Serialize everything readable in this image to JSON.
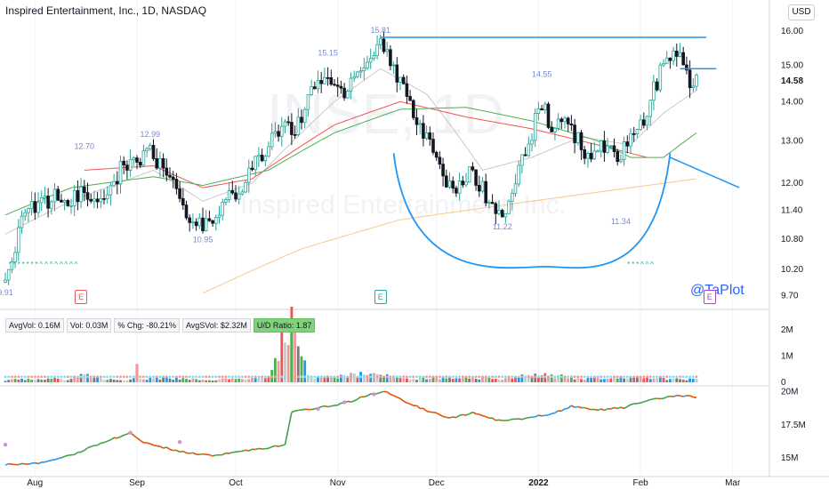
{
  "header": {
    "title": "Inspired Entertainment, Inc., 1D, NASDAQ",
    "currency_button": "USD",
    "watermark": "INSE, 1D",
    "watermark_sub": "Inspired Entertainment, Inc."
  },
  "stats": {
    "avgvol": "AvgVol: 0.16M",
    "vol": "Vol: 0.03M",
    "chg": "% Chg: -80.21%",
    "avgsvol": "AvgSVol: $2.32M",
    "ud": "U/D Ratio: 1.87"
  },
  "brand": "@TaPlot",
  "earnings_badge": "E",
  "colors": {
    "up": "#26a69a",
    "down": "#131722",
    "ma_short": "#c9c9c9",
    "ma_mid": "#ef5350",
    "ma_long": "#4caf50",
    "ma_200": "#f7c98a",
    "drawing": "#2196f3",
    "line_orange": "#e65100"
  },
  "chart_data": [
    {
      "type": "line",
      "title": "Inspired Entertainment, Inc., 1D, NASDAQ",
      "ylabel": "USD",
      "y_scale": "log",
      "ylim": [
        9.55,
        16.35
      ],
      "y_ticks": [
        "16.00",
        "15.00",
        "14.00",
        "13.00",
        "12.00",
        "11.40",
        "10.80",
        "10.20",
        "9.70"
      ],
      "last_price": "14.58",
      "x_ticks": [
        "Aug",
        "Sep",
        "Oct",
        "Nov",
        "Dec",
        "2022",
        "Feb",
        "Mar"
      ],
      "x_tick_days": [
        9,
        40,
        70,
        101,
        131,
        162,
        193,
        221
      ],
      "x_range_days": [
        0,
        238
      ],
      "annotations": [
        {
          "label": "9.91",
          "day": 0,
          "value": 9.91,
          "anchor": "below"
        },
        {
          "label": "12.70",
          "day": 24,
          "value": 12.7,
          "anchor": "above"
        },
        {
          "label": "12.99",
          "day": 44,
          "value": 12.99,
          "anchor": "above"
        },
        {
          "label": "10.95",
          "day": 60,
          "value": 10.95,
          "anchor": "below"
        },
        {
          "label": "15.15",
          "day": 98,
          "value": 15.15,
          "anchor": "above"
        },
        {
          "label": "15.81",
          "day": 114,
          "value": 15.81,
          "anchor": "above"
        },
        {
          "label": "11.22",
          "day": 151,
          "value": 11.22,
          "anchor": "below"
        },
        {
          "label": "14.55",
          "day": 163,
          "value": 14.55,
          "anchor": "above"
        },
        {
          "label": "11.34",
          "day": 187,
          "value": 11.34,
          "anchor": "below"
        }
      ],
      "waypoints": [
        [
          0,
          9.95
        ],
        [
          3,
          10.7
        ],
        [
          6,
          11.5
        ],
        [
          10,
          11.4
        ],
        [
          15,
          11.8
        ],
        [
          20,
          11.6
        ],
        [
          24,
          11.9
        ],
        [
          27,
          11.7
        ],
        [
          31,
          11.6
        ],
        [
          35,
          12.3
        ],
        [
          40,
          12.6
        ],
        [
          44,
          12.7
        ],
        [
          48,
          12.3
        ],
        [
          52,
          11.8
        ],
        [
          56,
          11.3
        ],
        [
          60,
          11.1
        ],
        [
          64,
          11.3
        ],
        [
          70,
          11.8
        ],
        [
          75,
          12.3
        ],
        [
          80,
          12.9
        ],
        [
          85,
          13.5
        ],
        [
          88,
          13.2
        ],
        [
          92,
          14.0
        ],
        [
          95,
          14.5
        ],
        [
          98,
          14.9
        ],
        [
          102,
          14.2
        ],
        [
          106,
          14.6
        ],
        [
          110,
          15.2
        ],
        [
          114,
          15.7
        ],
        [
          118,
          15.0
        ],
        [
          122,
          14.1
        ],
        [
          126,
          13.3
        ],
        [
          130,
          12.8
        ],
        [
          134,
          12.1
        ],
        [
          138,
          11.9
        ],
        [
          142,
          12.3
        ],
        [
          146,
          11.7
        ],
        [
          150,
          11.4
        ],
        [
          153,
          11.5
        ],
        [
          156,
          12.2
        ],
        [
          160,
          13.2
        ],
        [
          163,
          14.0
        ],
        [
          166,
          13.3
        ],
        [
          170,
          13.5
        ],
        [
          174,
          13.0
        ],
        [
          178,
          12.6
        ],
        [
          182,
          12.9
        ],
        [
          186,
          12.5
        ],
        [
          189,
          13.1
        ],
        [
          193,
          13.4
        ],
        [
          197,
          14.3
        ],
        [
          200,
          15.0
        ],
        [
          203,
          15.4
        ],
        [
          206,
          15.2
        ],
        [
          208,
          14.6
        ],
        [
          210,
          14.58
        ]
      ],
      "moving_averages": [
        {
          "name": "",
          "color": "#c9c9c9",
          "anchors": [
            [
              0,
              10.9
            ],
            [
              20,
              11.6
            ],
            [
              45,
              12.3
            ],
            [
              60,
              11.6
            ],
            [
              75,
              12.0
            ],
            [
              100,
              14.0
            ],
            [
              114,
              14.9
            ],
            [
              128,
              14.2
            ],
            [
              145,
              12.3
            ],
            [
              160,
              12.6
            ],
            [
              175,
              13.1
            ],
            [
              190,
              12.9
            ],
            [
              200,
              13.7
            ],
            [
              210,
              14.3
            ]
          ]
        },
        {
          "name": "",
          "color": "#ef5350",
          "anchors": [
            [
              24,
              12.3
            ],
            [
              45,
              12.4
            ],
            [
              60,
              11.9
            ],
            [
              75,
              12.1
            ],
            [
              100,
              13.4
            ],
            [
              120,
              14.0
            ],
            [
              140,
              13.6
            ],
            [
              160,
              13.3
            ],
            [
              180,
              12.9
            ],
            [
              195,
              12.6
            ]
          ]
        },
        {
          "name": "",
          "color": "#4caf50",
          "anchors": [
            [
              0,
              11.3
            ],
            [
              20,
              11.9
            ],
            [
              45,
              12.15
            ],
            [
              60,
              11.95
            ],
            [
              80,
              12.3
            ],
            [
              100,
              13.2
            ],
            [
              120,
              13.8
            ],
            [
              140,
              13.85
            ],
            [
              160,
              13.5
            ],
            [
              180,
              13.0
            ],
            [
              190,
              12.6
            ],
            [
              200,
              12.6
            ],
            [
              210,
              13.2
            ]
          ]
        },
        {
          "name": "",
          "color": "#f7c98a",
          "anchors": [
            [
              60,
              9.75
            ],
            [
              90,
              10.6
            ],
            [
              120,
              11.2
            ],
            [
              160,
              11.6
            ],
            [
              210,
              12.1
            ]
          ]
        }
      ],
      "drawings": {
        "resistance_line": {
          "day_from": 114,
          "day_to": 213,
          "value": 15.81
        },
        "pivot_line": {
          "day_from": 205,
          "day_to": 216,
          "value": 14.9
        },
        "cup_arc": {
          "day_from": 118,
          "day_bottom": 164,
          "day_to": 202,
          "value_top": 12.7,
          "value_bottom": 10.25
        },
        "projection_line": {
          "day_from": 202,
          "day_to": 223,
          "value_from": 12.6,
          "value_to": 11.9
        }
      },
      "signals": [
        {
          "glyphs": "*******^^^^^^^^",
          "day_from": 1,
          "day_to": 22,
          "value": 10.25
        },
        {
          "glyphs": "***^^^",
          "day_from": 189,
          "day_to": 197,
          "value": 10.25
        }
      ],
      "earnings_days": [
        23,
        114,
        214
      ]
    },
    {
      "type": "bar",
      "title": "",
      "ylabel": "",
      "ylim": [
        0,
        2500000
      ],
      "y_ticks": [
        "2M",
        "1M",
        "0"
      ],
      "volume_profile": [
        [
          0,
          90000
        ],
        [
          10,
          110000
        ],
        [
          20,
          130000
        ],
        [
          23,
          280000
        ],
        [
          30,
          110000
        ],
        [
          40,
          120000
        ],
        [
          48,
          180000
        ],
        [
          55,
          110000
        ],
        [
          65,
          100000
        ],
        [
          73,
          130000
        ],
        [
          80,
          170000
        ],
        [
          87,
          2300000
        ],
        [
          92,
          230000
        ],
        [
          100,
          200000
        ],
        [
          110,
          330000
        ],
        [
          116,
          230000
        ],
        [
          125,
          160000
        ],
        [
          138,
          200000
        ],
        [
          150,
          130000
        ],
        [
          163,
          300000
        ],
        [
          175,
          150000
        ],
        [
          188,
          220000
        ],
        [
          200,
          140000
        ],
        [
          210,
          100000
        ]
      ],
      "highlight_bars": [
        {
          "day": 40,
          "value": 700000,
          "color": "#ef9a9a"
        },
        {
          "day": 87,
          "value": 2300000,
          "color": "#4caf50"
        }
      ]
    },
    {
      "type": "line",
      "title": "",
      "ylabel": "",
      "ylim": [
        14000000,
        20300000
      ],
      "y_ticks": [
        "20M",
        "17.5M",
        "15M"
      ],
      "anchors": [
        [
          0,
          14.5
        ],
        [
          10,
          14.6
        ],
        [
          20,
          15.2
        ],
        [
          30,
          16.2
        ],
        [
          38,
          16.9
        ],
        [
          42,
          16.2
        ],
        [
          48,
          15.8
        ],
        [
          55,
          15.4
        ],
        [
          63,
          15.2
        ],
        [
          72,
          15.5
        ],
        [
          78,
          15.7
        ],
        [
          85,
          16.0
        ],
        [
          87,
          18.5
        ],
        [
          96,
          18.8
        ],
        [
          104,
          19.2
        ],
        [
          110,
          19.7
        ],
        [
          116,
          20.0
        ],
        [
          121,
          19.3
        ],
        [
          128,
          18.6
        ],
        [
          135,
          18.0
        ],
        [
          142,
          18.4
        ],
        [
          150,
          17.8
        ],
        [
          158,
          18.0
        ],
        [
          166,
          18.3
        ],
        [
          172,
          18.9
        ],
        [
          180,
          18.6
        ],
        [
          188,
          18.8
        ],
        [
          196,
          19.4
        ],
        [
          204,
          19.7
        ],
        [
          210,
          19.6
        ]
      ],
      "markers": [
        {
          "day": 0,
          "value": 16.0
        },
        {
          "day": 38,
          "value": 16.9
        },
        {
          "day": 53,
          "value": 16.2
        },
        {
          "day": 95,
          "value": 18.7
        },
        {
          "day": 103,
          "value": 19.2
        },
        {
          "day": 112,
          "value": 19.8
        }
      ]
    }
  ]
}
